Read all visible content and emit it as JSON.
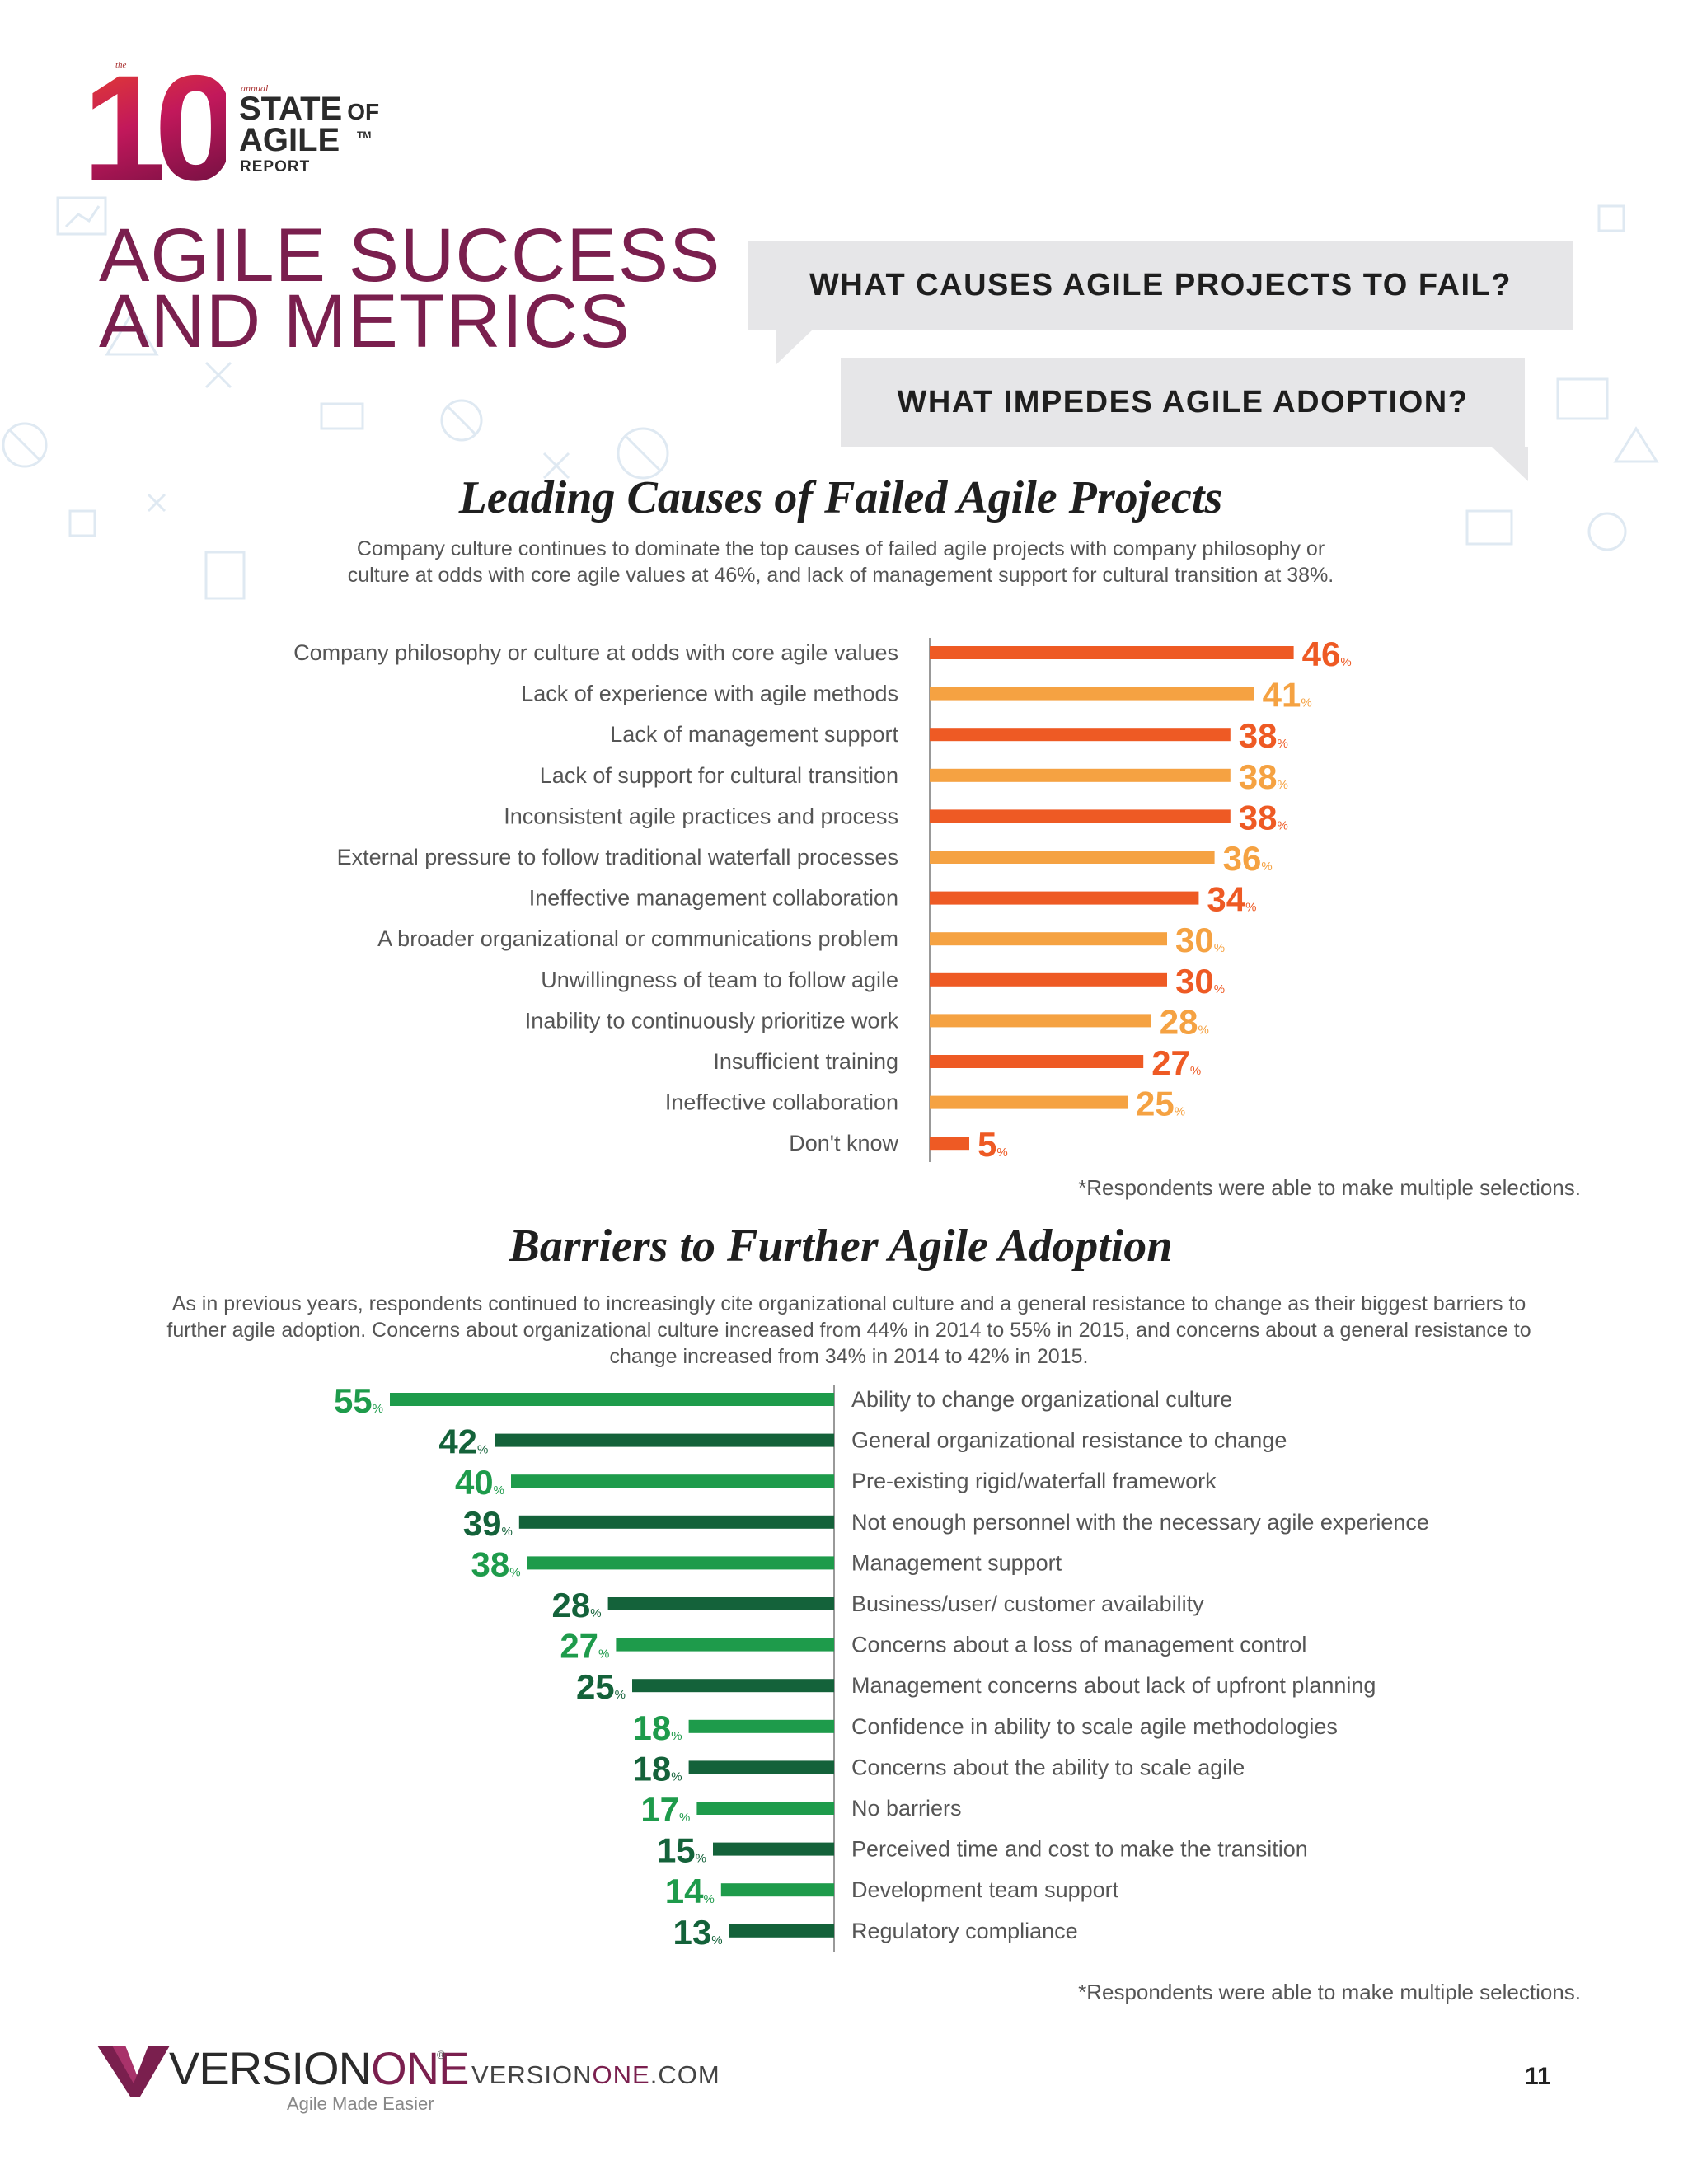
{
  "logo": {
    "the": "the",
    "number": "10",
    "annual": "annual",
    "state": "STATE",
    "of": "OF",
    "agile": "AGILE",
    "tm": "TM",
    "report": "REPORT"
  },
  "page_title_line1": "AGILE SUCCESS",
  "page_title_line2": "AND METRICS",
  "questions": [
    "WHAT CAUSES AGILE PROJECTS TO FAIL?",
    "WHAT IMPEDES AGILE ADOPTION?"
  ],
  "colors": {
    "orange_dark": "#EE5A24",
    "orange_light": "#F5A242",
    "green_light": "#1E9B4B",
    "green_dark": "#14623A",
    "title_maroon": "#7A1F4E"
  },
  "footer": {
    "brand_a": "VERSION",
    "brand_b": "ONE",
    "reg": "®",
    "tagline": "Agile Made Easier",
    "url_a": "VERSION",
    "url_b": "ONE",
    "url_c": ".COM",
    "page_number": "11"
  },
  "chart_data": [
    {
      "type": "bar",
      "orientation": "horizontal",
      "title": "Leading Causes of Failed Agile Projects",
      "intro": "Company culture continues to dominate the top causes of failed agile projects with company philosophy or culture at odds with core agile values at 46%, and lack of management support for cultural transition at 38%.",
      "categories": [
        "Company philosophy or culture at odds with core agile values",
        "Lack of experience with agile methods",
        "Lack of management support",
        "Lack of support for cultural transition",
        "Inconsistent agile practices and process",
        "External pressure to follow traditional waterfall processes",
        "Ineffective management collaboration",
        "A broader organizational or communications problem",
        "Unwillingness of team to follow agile",
        "Inability to continuously prioritize work",
        "Insufficient training",
        "Ineffective collaboration",
        "Don't know"
      ],
      "values": [
        46,
        41,
        38,
        38,
        38,
        36,
        34,
        30,
        30,
        28,
        27,
        25,
        5
      ],
      "unit": "%",
      "note": "*Respondents were able to make multiple selections."
    },
    {
      "type": "bar",
      "orientation": "horizontal",
      "title": "Barriers to Further Agile Adoption",
      "intro": "As in previous years, respondents continued to increasingly cite organizational culture and a general resistance to change as their biggest barriers to further agile adoption. Concerns about organizational culture increased from 44% in 2014 to 55% in 2015, and concerns about a general resistance to change increased from 34% in 2014 to 42% in 2015.",
      "categories": [
        "Ability to change organizational culture",
        "General organizational resistance to change",
        "Pre-existing rigid/waterfall framework",
        "Not enough personnel with the necessary agile experience",
        "Management support",
        "Business/user/ customer availability",
        "Concerns about a loss of management control",
        "Management concerns about lack of upfront planning",
        "Confidence in ability to scale agile methodologies",
        "Concerns about the ability to scale agile",
        "No barriers",
        "Perceived time and cost to make the transition",
        "Development team support",
        "Regulatory compliance"
      ],
      "values": [
        55,
        42,
        40,
        39,
        38,
        28,
        27,
        25,
        18,
        18,
        17,
        15,
        14,
        13
      ],
      "unit": "%",
      "note": "*Respondents were able to make multiple selections."
    }
  ]
}
